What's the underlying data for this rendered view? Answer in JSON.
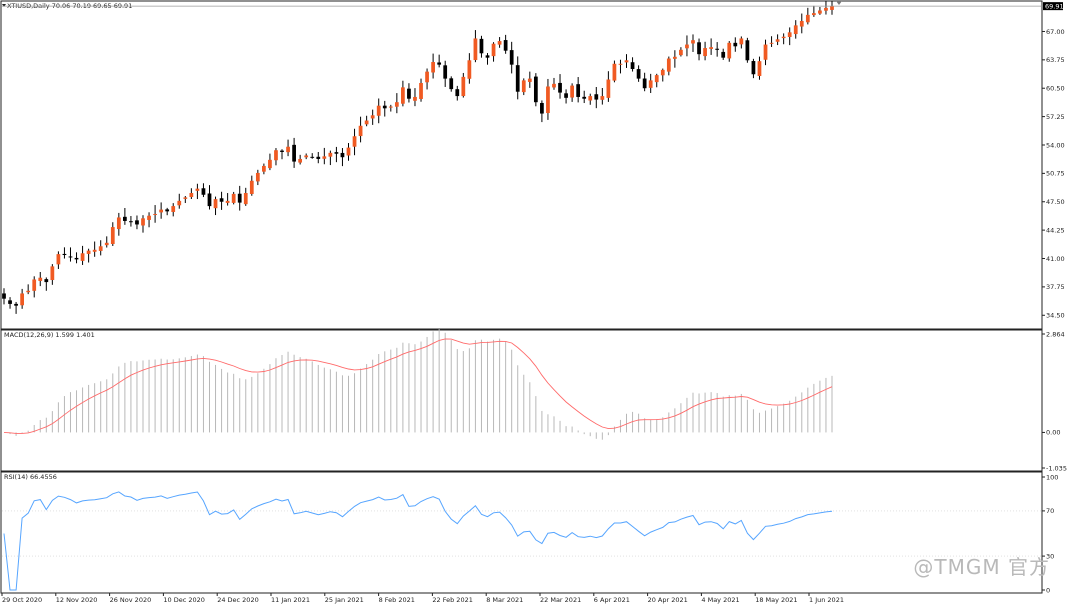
{
  "panes": {
    "price": {
      "label": "XTIUSD,Daily  70.06 70.19 69.65 69.91",
      "price_ticks": [
        "67.00",
        "63.75",
        "60.50",
        "57.25",
        "54.00",
        "50.75",
        "47.50",
        "44.25",
        "41.00",
        "37.75",
        "34.50"
      ],
      "current_price_label": "69.91"
    },
    "macd": {
      "label": "MACD(12,26,9) 1.599 1.401",
      "ticks": [
        "2.864",
        "0.00",
        "-1.035"
      ]
    },
    "rsi": {
      "label": "RSI(14) 66.4556",
      "ticks": [
        "100",
        "70",
        "30",
        "0"
      ]
    }
  },
  "x_axis": {
    "dates": [
      "29 Oct 2020",
      "12 Nov 2020",
      "26 Nov 2020",
      "10 Dec 2020",
      "24 Dec 2020",
      "11 Jan 2021",
      "25 Jan 2021",
      "8 Feb 2021",
      "22 Feb 2021",
      "8 Mar 2021",
      "22 Mar 2021",
      "6 Apr 2021",
      "20 Apr 2021",
      "4 May 2021",
      "18 May 2021",
      "1 Jun 2021"
    ]
  },
  "watermark": "@TMGM 官方",
  "colors": {
    "bull": "#f05a22",
    "bear": "#000000",
    "macd_hist": "#b8b8b8",
    "macd_signal": "#ff6a6a",
    "rsi": "#56a5ff",
    "grid": "#ffffff"
  },
  "chart_data": [
    {
      "type": "candlestick",
      "title": "XTIUSD,Daily",
      "ylim": [
        33.5,
        69.0
      ],
      "last_bar": {
        "open": 70.06,
        "high": 70.19,
        "low": 69.65,
        "close": 69.91
      },
      "closes": [
        36.4,
        35.8,
        35.6,
        37.0,
        37.3,
        38.6,
        38.8,
        38.3,
        40.1,
        41.5,
        41.4,
        41.2,
        40.9,
        41.6,
        41.9,
        42.0,
        42.4,
        42.8,
        44.6,
        45.7,
        45.3,
        45.2,
        44.9,
        45.6,
        45.9,
        46.1,
        46.6,
        46.4,
        47.0,
        47.6,
        48.0,
        48.5,
        49.0,
        48.3,
        47.0,
        47.8,
        47.5,
        47.6,
        48.4,
        47.4,
        48.5,
        49.9,
        50.8,
        51.6,
        52.3,
        53.4,
        53.2,
        53.8,
        52.1,
        52.4,
        52.8,
        52.6,
        52.4,
        52.7,
        53.1,
        53.0,
        52.6,
        53.7,
        55.0,
        56.2,
        56.8,
        57.4,
        58.5,
        58.2,
        58.4,
        58.9,
        60.6,
        59.3,
        59.5,
        61.1,
        62.4,
        63.5,
        63.2,
        61.6,
        60.4,
        59.6,
        61.8,
        63.7,
        66.2,
        64.5,
        64.0,
        65.6,
        65.9,
        64.8,
        63.2,
        60.1,
        61.4,
        61.6,
        58.9,
        57.6,
        60.7,
        61.0,
        60.0,
        59.4,
        60.8,
        59.5,
        59.3,
        59.6,
        59.2,
        59.6,
        61.5,
        63.3,
        63.3,
        63.7,
        62.7,
        61.6,
        60.5,
        61.4,
        62.0,
        62.6,
        63.9,
        64.1,
        64.9,
        65.5,
        66.0,
        64.4,
        65.1,
        65.2,
        64.9,
        64.0,
        65.7,
        65.3,
        66.2,
        63.7,
        62.1,
        63.6,
        65.5,
        65.7,
        66.1,
        66.4,
        66.9,
        67.7,
        68.2,
        68.9,
        69.1,
        69.4,
        69.7,
        69.9
      ]
    },
    {
      "type": "bar",
      "title": "MACD(12,26,9)",
      "ylim": [
        -1.035,
        2.864
      ],
      "last_values": {
        "macd": 1.599,
        "signal": 1.401
      }
    },
    {
      "type": "line",
      "title": "RSI(14)",
      "ylim": [
        0,
        100
      ],
      "last_value": 66.4556
    }
  ]
}
